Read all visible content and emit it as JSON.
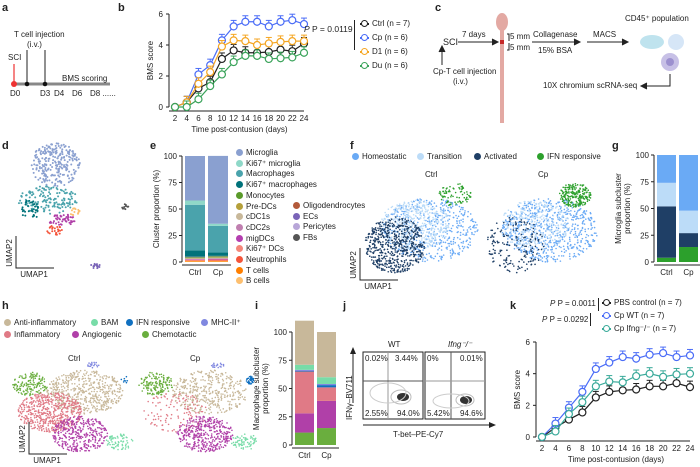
{
  "panels": {
    "a": "a",
    "b": "b",
    "c": "c",
    "d": "d",
    "e": "e",
    "f": "f",
    "g": "g",
    "h": "h",
    "i": "i",
    "j": "j",
    "k": "k"
  },
  "panel_a": {
    "sci": "SCI",
    "injection": "T cell injection",
    "route": "(i.v.)",
    "scoring": "BMS scoring",
    "days": [
      "D0",
      "D3",
      "D4",
      "D6",
      "D8 ......"
    ]
  },
  "panel_c": {
    "sci": "SCI",
    "days": "7 days",
    "injection": "Cp-T cell injection",
    "route": "(i.v.)",
    "mm1": "5 mm",
    "mm2": "5 mm",
    "collagenase": "Collagenase",
    "bsa": "15% BSA",
    "macs": "MACS",
    "population": "CD45⁺ population",
    "seq": "10X chromium scRNA-seq"
  },
  "umap": {
    "x": "UMAP1",
    "y": "UMAP2"
  },
  "panel_f": {
    "ctrl": "Ctrl",
    "cp": "Cp"
  },
  "panel_h": {
    "ctrl": "Ctrl",
    "cp": "Cp"
  },
  "panel_j": {
    "wt": "WT",
    "ko": "Ifng⁻/⁻",
    "ylabel": "IFNγ–BV711",
    "xlabel": "T-bet–PE-Cy7",
    "wt_quadrants": [
      "0.02%",
      "3.44%",
      "2.55%",
      "94.0%"
    ],
    "ko_quadrants": [
      "0%",
      "0.01%",
      "5.42%",
      "94.6%"
    ]
  },
  "chart_data": [
    {
      "id": "b",
      "type": "line",
      "xlabel": "Time post-contusion (days)",
      "ylabel": "BMS score",
      "ylim": [
        0,
        6
      ],
      "yticks": [
        0,
        2,
        4,
        6
      ],
      "x": [
        2,
        4,
        6,
        8,
        10,
        12,
        14,
        16,
        18,
        20,
        22,
        24
      ],
      "annotation": "P = 0.0119",
      "series": [
        {
          "name": "Ctrl (n = 7)",
          "color": "#222222",
          "values": [
            0,
            0.3,
            1.2,
            1.6,
            3.1,
            3.65,
            3.5,
            3.5,
            3.55,
            3.7,
            3.6,
            4.1
          ]
        },
        {
          "name": "Cp (n = 6)",
          "color": "#4a6cf7",
          "values": [
            0,
            0.3,
            2.1,
            2.7,
            4.3,
            5.2,
            5.5,
            5.5,
            5.2,
            5.5,
            5.6,
            5.35
          ]
        },
        {
          "name": "D1 (n = 6)",
          "color": "#f5a623",
          "values": [
            0,
            0.3,
            1.5,
            2.25,
            3.9,
            4.3,
            4.25,
            4.0,
            4.1,
            4.2,
            4.25,
            4.25
          ]
        },
        {
          "name": "Du (n = 6)",
          "color": "#3aa35a",
          "values": [
            0,
            0,
            0.5,
            1.35,
            2.1,
            2.9,
            3.3,
            3.3,
            3.1,
            3.15,
            3.2,
            3.5
          ]
        }
      ]
    },
    {
      "id": "e",
      "type": "bar",
      "stacked": true,
      "ylabel": "Cluster proportion (%)",
      "ylim": [
        0,
        100
      ],
      "yticks": [
        0,
        25,
        50,
        75,
        100
      ],
      "categories": [
        "Ctrl",
        "Cp"
      ],
      "series": [
        {
          "name": "B cells",
          "color": "#fdbf6f",
          "values": [
            0.5,
            0.5
          ]
        },
        {
          "name": "T cells",
          "color": "#ff7f00",
          "values": [
            0.6,
            0.6
          ]
        },
        {
          "name": "Neutrophils",
          "color": "#f4553b",
          "values": [
            0.6,
            0.7
          ]
        },
        {
          "name": "Ki67⁺ DCs",
          "color": "#f4877a",
          "values": [
            0.4,
            0.5
          ]
        },
        {
          "name": "migDCs",
          "color": "#b43fb0",
          "values": [
            0.5,
            0.6
          ]
        },
        {
          "name": "cDC2s",
          "color": "#c07fb0",
          "values": [
            0.4,
            0.5
          ]
        },
        {
          "name": "cDC1s",
          "color": "#c8b89a",
          "values": [
            0.4,
            0.5
          ]
        },
        {
          "name": "Pre-DCs",
          "color": "#b5a03b",
          "values": [
            0.5,
            0.6
          ]
        },
        {
          "name": "Monocytes",
          "color": "#5a9a2a",
          "values": [
            0.6,
            0.8
          ]
        },
        {
          "name": "FBs",
          "color": "#555555",
          "values": [
            0.2,
            0.2
          ]
        },
        {
          "name": "Pericytes",
          "color": "#b8a6d8",
          "values": [
            0.1,
            0.1
          ]
        },
        {
          "name": "ECs",
          "color": "#7a64b8",
          "values": [
            0.1,
            0.1
          ]
        },
        {
          "name": "Oligodendrocytes",
          "color": "#b35a3a",
          "values": [
            0.1,
            0.1
          ]
        },
        {
          "name": "Ki67⁺ macrophages",
          "color": "#00727a",
          "values": [
            6,
            3.3
          ]
        },
        {
          "name": "Macrophages",
          "color": "#4aa3ac",
          "values": [
            43,
            25
          ]
        },
        {
          "name": "Ki67⁺ microglia",
          "color": "#8fd8c8",
          "values": [
            4,
            2
          ]
        },
        {
          "name": "Microglia",
          "color": "#8aa0d0",
          "values": [
            42,
            64
          ]
        }
      ]
    },
    {
      "id": "g",
      "type": "bar",
      "stacked": true,
      "ylabel": "Microglia subcluster proportion (%)",
      "ylim": [
        0,
        100
      ],
      "yticks": [
        0,
        25,
        50,
        75,
        100
      ],
      "categories": [
        "Ctrl",
        "Cp"
      ],
      "series": [
        {
          "name": "IFN responsive",
          "color": "#2ca02c",
          "values": [
            4,
            14
          ]
        },
        {
          "name": "Activated",
          "color": "#1f3f66",
          "values": [
            48,
            13
          ]
        },
        {
          "name": "Transition",
          "color": "#bcdcf8",
          "values": [
            22,
            21
          ]
        },
        {
          "name": "Homeostatic",
          "color": "#6aaaf5",
          "values": [
            26,
            52
          ]
        }
      ]
    },
    {
      "id": "i",
      "type": "bar",
      "stacked": true,
      "ylabel": "Macrophage subcluster proportion (%)",
      "ylim": [
        0,
        100
      ],
      "yticks": [
        0,
        25,
        50,
        75,
        100
      ],
      "categories": [
        "Ctrl",
        "Cp"
      ],
      "series": [
        {
          "name": "Chemotactic",
          "color": "#6aae3e",
          "values": [
            11,
            15
          ]
        },
        {
          "name": "Angiogenic",
          "color": "#b040a8",
          "values": [
            17,
            24
          ]
        },
        {
          "name": "Inflammatory",
          "color": "#e07a86",
          "values": [
            37,
            12
          ]
        },
        {
          "name": "IFN responsive",
          "color": "#1070c0",
          "values": [
            0.5,
            2
          ]
        },
        {
          "name": "MHC-II⁺",
          "color": "#8088e0",
          "values": [
            1,
            1
          ]
        },
        {
          "name": "BAM",
          "color": "#78dca8",
          "values": [
            4.5,
            6
          ]
        },
        {
          "name": "Anti-inflammatory",
          "color": "#c8b89a",
          "values": [
            39,
            40
          ]
        }
      ]
    },
    {
      "id": "k",
      "type": "line",
      "xlabel": "Time post-contusion (days)",
      "ylabel": "BMS score",
      "ylim": [
        0,
        6
      ],
      "yticks": [
        0,
        2,
        4,
        6
      ],
      "x": [
        2,
        4,
        6,
        8,
        10,
        12,
        14,
        16,
        18,
        20,
        22,
        24
      ],
      "annotations": [
        "P = 0.0011",
        "P = 0.0292"
      ],
      "series": [
        {
          "name": "PBS control (n = 7)",
          "color": "#222222",
          "values": [
            0,
            0.6,
            1.1,
            1.55,
            2.5,
            2.85,
            2.95,
            3.0,
            3.2,
            3.2,
            3.4,
            3.15
          ]
        },
        {
          "name": "Cp WT (n = 7)",
          "color": "#4a6cf7",
          "values": [
            0,
            0.85,
            1.85,
            2.85,
            4.3,
            4.7,
            5.05,
            4.95,
            5.2,
            5.3,
            5.05,
            5.15
          ]
        },
        {
          "name": "Cp Ifng⁻/⁻ (n = 7)",
          "color": "#3aaa9a",
          "values": [
            0,
            0.35,
            1.45,
            2.2,
            3.2,
            3.5,
            3.45,
            3.85,
            4.0,
            3.8,
            3.95,
            4.0
          ]
        }
      ]
    }
  ]
}
